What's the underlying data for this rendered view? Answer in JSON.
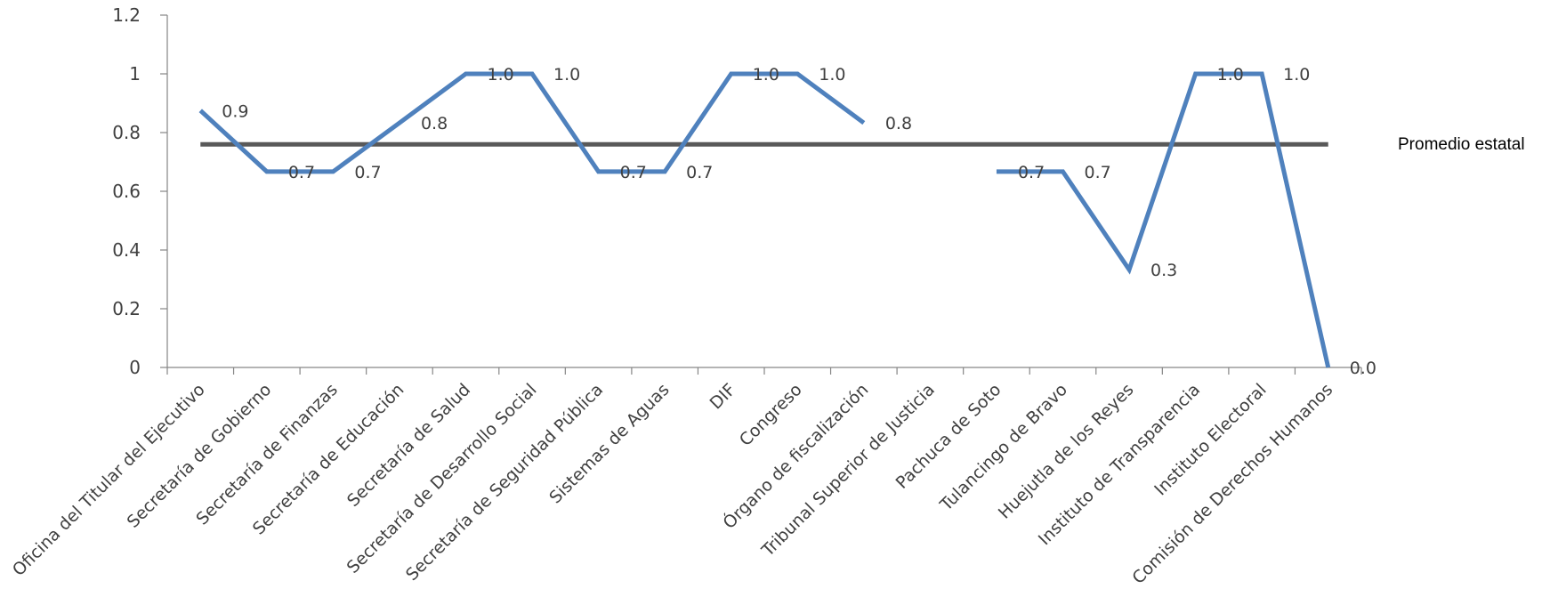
{
  "chart_data": {
    "type": "line",
    "title": "",
    "xlabel": "",
    "ylabel": "",
    "ylim": [
      0,
      1.2
    ],
    "yticks": [
      "0",
      "0.2",
      "0.4",
      "0.6",
      "0.8",
      "1",
      "1.2"
    ],
    "ytick_values": [
      0,
      0.2,
      0.4,
      0.6,
      0.8,
      1,
      1.2
    ],
    "grid": false,
    "categories": [
      "Oficina del Titular del Ejecutivo",
      "Secretaría de Gobierno",
      "Secretaría de Finanzas",
      "Secretaría de Educación",
      "Secretaría de Salud",
      "Secretaría de Desarrollo Social",
      "Secretaría de Seguridad Pública",
      "Sistemas de Aguas",
      "DIF",
      "Congreso",
      "Órgano de fiscalización",
      "Tribunal Superior de Justicia",
      "Pachuca de Soto",
      "Tulancingo de Bravo",
      "Huejutla de los Reyes",
      "Instituto de Transparencia",
      "Instituto Electoral",
      "Comisión de Derechos Humanos"
    ],
    "series": [
      {
        "values": [
          0.875,
          0.667,
          0.667,
          0.833,
          1.0,
          1.0,
          0.667,
          0.667,
          1.0,
          1.0,
          0.833,
          null,
          0.667,
          0.667,
          0.333,
          1.0,
          1.0,
          0.0
        ],
        "data_labels": [
          "0.9",
          "0.7",
          "0.7",
          "0.8",
          "1.0",
          "1.0",
          "0.7",
          "0.7",
          "1.0",
          "1.0",
          "0.8",
          "",
          "0.7",
          "0.7",
          "0.3",
          "1.0",
          "1.0",
          "0.0"
        ],
        "color": "#4f81bd"
      }
    ],
    "reference_line": {
      "name": "Promedio estatal",
      "value": 0.76,
      "color": "#595959"
    }
  }
}
